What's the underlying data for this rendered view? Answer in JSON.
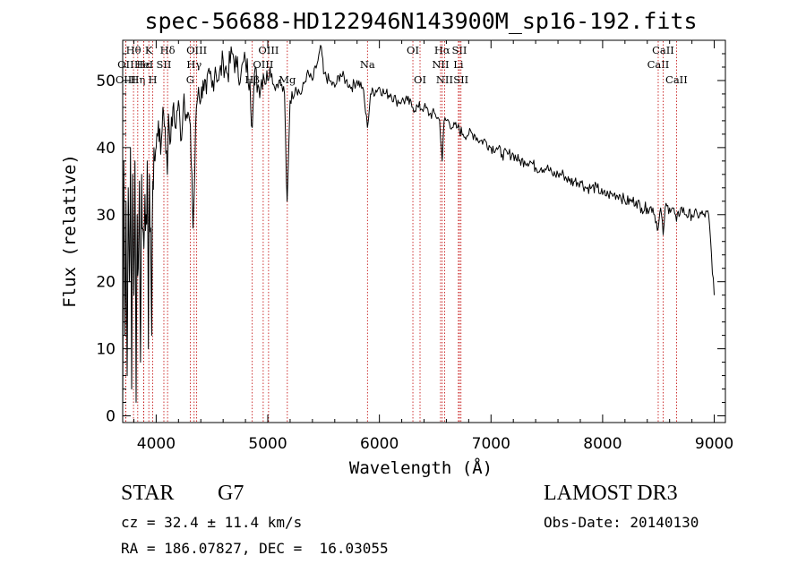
{
  "chart_data": {
    "type": "line",
    "title": "spec-56688-HD122946N143900M_sp16-192.fits",
    "xlabel": "Wavelength (Å)",
    "ylabel": "Flux (relative)",
    "xlim": [
      3700,
      9100
    ],
    "ylim": [
      -1,
      56
    ],
    "xticks": [
      4000,
      5000,
      6000,
      7000,
      8000,
      9000
    ],
    "yticks": [
      0,
      10,
      20,
      30,
      40,
      50
    ],
    "series": [
      {
        "name": "flux",
        "points": [
          [
            3700,
            1
          ],
          [
            3710,
            38
          ],
          [
            3720,
            12
          ],
          [
            3730,
            32
          ],
          [
            3740,
            6
          ],
          [
            3750,
            34
          ],
          [
            3760,
            20
          ],
          [
            3770,
            40
          ],
          [
            3780,
            4
          ],
          [
            3790,
            36
          ],
          [
            3800,
            18
          ],
          [
            3810,
            38
          ],
          [
            3820,
            2
          ],
          [
            3830,
            30
          ],
          [
            3840,
            22
          ],
          [
            3850,
            35
          ],
          [
            3860,
            8
          ],
          [
            3870,
            36
          ],
          [
            3880,
            28
          ],
          [
            3890,
            25
          ],
          [
            3900,
            33
          ],
          [
            3910,
            30
          ],
          [
            3920,
            38
          ],
          [
            3930,
            10
          ],
          [
            3940,
            36
          ],
          [
            3950,
            28
          ],
          [
            3960,
            12
          ],
          [
            3970,
            35
          ],
          [
            3980,
            40
          ],
          [
            3990,
            38
          ],
          [
            4000,
            40
          ],
          [
            4020,
            44
          ],
          [
            4040,
            39
          ],
          [
            4060,
            46
          ],
          [
            4080,
            43
          ],
          [
            4100,
            36
          ],
          [
            4110,
            45
          ],
          [
            4130,
            41
          ],
          [
            4150,
            46
          ],
          [
            4170,
            43
          ],
          [
            4200,
            47
          ],
          [
            4220,
            41
          ],
          [
            4250,
            48
          ],
          [
            4270,
            45
          ],
          [
            4300,
            44
          ],
          [
            4320,
            36
          ],
          [
            4330,
            28
          ],
          [
            4340,
            33
          ],
          [
            4360,
            46
          ],
          [
            4380,
            49
          ],
          [
            4400,
            47
          ],
          [
            4420,
            50
          ],
          [
            4450,
            48
          ],
          [
            4480,
            51
          ],
          [
            4500,
            49
          ],
          [
            4530,
            52
          ],
          [
            4560,
            50
          ],
          [
            4600,
            53
          ],
          [
            4640,
            51
          ],
          [
            4680,
            54
          ],
          [
            4720,
            52
          ],
          [
            4760,
            51
          ],
          [
            4800,
            53
          ],
          [
            4840,
            50
          ],
          [
            4861,
            43
          ],
          [
            4880,
            51
          ],
          [
            4920,
            49
          ],
          [
            4960,
            51
          ],
          [
            5000,
            50
          ],
          [
            5020,
            52
          ],
          [
            5060,
            49
          ],
          [
            5100,
            50
          ],
          [
            5150,
            48
          ],
          [
            5167,
            35
          ],
          [
            5173,
            32
          ],
          [
            5184,
            38
          ],
          [
            5200,
            47
          ],
          [
            5250,
            49
          ],
          [
            5300,
            48
          ],
          [
            5350,
            51
          ],
          [
            5400,
            50
          ],
          [
            5450,
            53
          ],
          [
            5480,
            55
          ],
          [
            5500,
            51
          ],
          [
            5550,
            50
          ],
          [
            5600,
            49
          ],
          [
            5650,
            51
          ],
          [
            5700,
            50
          ],
          [
            5750,
            49
          ],
          [
            5800,
            50
          ],
          [
            5850,
            49
          ],
          [
            5893,
            43
          ],
          [
            5920,
            48
          ],
          [
            6000,
            49
          ],
          [
            6050,
            48
          ],
          [
            6100,
            48
          ],
          [
            6150,
            47
          ],
          [
            6200,
            47
          ],
          [
            6250,
            47
          ],
          [
            6300,
            46
          ],
          [
            6350,
            46
          ],
          [
            6400,
            46
          ],
          [
            6450,
            45
          ],
          [
            6500,
            45
          ],
          [
            6540,
            44
          ],
          [
            6563,
            38
          ],
          [
            6580,
            44
          ],
          [
            6620,
            44
          ],
          [
            6660,
            43
          ],
          [
            6700,
            43
          ],
          [
            6750,
            42
          ],
          [
            6800,
            42
          ],
          [
            6850,
            42
          ],
          [
            6900,
            41
          ],
          [
            6950,
            41
          ],
          [
            7000,
            40
          ],
          [
            7050,
            40
          ],
          [
            7100,
            39
          ],
          [
            7150,
            39
          ],
          [
            7200,
            39
          ],
          [
            7250,
            38
          ],
          [
            7300,
            38
          ],
          [
            7350,
            38
          ],
          [
            7400,
            37
          ],
          [
            7450,
            37
          ],
          [
            7500,
            37
          ],
          [
            7550,
            36
          ],
          [
            7600,
            36
          ],
          [
            7650,
            36
          ],
          [
            7700,
            35
          ],
          [
            7750,
            35
          ],
          [
            7800,
            35
          ],
          [
            7850,
            34
          ],
          [
            7900,
            34
          ],
          [
            7950,
            34
          ],
          [
            8000,
            33
          ],
          [
            8050,
            33
          ],
          [
            8100,
            33
          ],
          [
            8150,
            33
          ],
          [
            8200,
            32
          ],
          [
            8250,
            32
          ],
          [
            8300,
            32
          ],
          [
            8350,
            31
          ],
          [
            8400,
            31
          ],
          [
            8450,
            31
          ],
          [
            8498,
            28
          ],
          [
            8520,
            31
          ],
          [
            8542,
            27
          ],
          [
            8560,
            31
          ],
          [
            8600,
            31
          ],
          [
            8630,
            31
          ],
          [
            8662,
            29
          ],
          [
            8700,
            31
          ],
          [
            8750,
            30
          ],
          [
            8800,
            30
          ],
          [
            8850,
            30
          ],
          [
            8900,
            30
          ],
          [
            8950,
            30
          ],
          [
            9000,
            18
          ]
        ]
      }
    ],
    "lines": [
      {
        "name": "Hθ",
        "wave": 3797,
        "row": 0
      },
      {
        "name": "OII",
        "wave": 3727,
        "row": 1
      },
      {
        "name": "OIII",
        "wave": 3727,
        "row": 2
      },
      {
        "name": "Hε",
        "wave": 3889,
        "row": 1
      },
      {
        "name": "Hη",
        "wave": 3835,
        "row": 2
      },
      {
        "name": "K",
        "wave": 3934,
        "row": 0
      },
      {
        "name": "H",
        "wave": 3969,
        "row": 2
      },
      {
        "name": "HeI",
        "wave": 3889,
        "row": 1
      },
      {
        "name": "SII",
        "wave": 4069,
        "row": 1
      },
      {
        "name": "Hδ",
        "wave": 4102,
        "row": 0
      },
      {
        "name": "G",
        "wave": 4305,
        "row": 2
      },
      {
        "name": "Hγ",
        "wave": 4340,
        "row": 1
      },
      {
        "name": "OIII",
        "wave": 4363,
        "row": 0
      },
      {
        "name": "Hβ",
        "wave": 4861,
        "row": 2
      },
      {
        "name": "OIII",
        "wave": 4959,
        "row": 1
      },
      {
        "name": "OIII",
        "wave": 5007,
        "row": 0
      },
      {
        "name": "Mg",
        "wave": 5175,
        "row": 2
      },
      {
        "name": "Na",
        "wave": 5893,
        "row": 1
      },
      {
        "name": "OI",
        "wave": 6300,
        "row": 0
      },
      {
        "name": "OI",
        "wave": 6364,
        "row": 2
      },
      {
        "name": "Hα",
        "wave": 6563,
        "row": 0
      },
      {
        "name": "NII",
        "wave": 6548,
        "row": 1
      },
      {
        "name": "NII",
        "wave": 6584,
        "row": 2
      },
      {
        "name": "SII",
        "wave": 6717,
        "row": 0
      },
      {
        "name": "Li",
        "wave": 6708,
        "row": 1
      },
      {
        "name": "SII",
        "wave": 6731,
        "row": 2
      },
      {
        "name": "CaII",
        "wave": 8498,
        "row": 1
      },
      {
        "name": "CaII",
        "wave": 8542,
        "row": 0
      },
      {
        "name": "CaII",
        "wave": 8662,
        "row": 2
      }
    ]
  },
  "info": {
    "object_type": "STAR",
    "subclass": "G7",
    "survey": "LAMOST DR3",
    "redshift": "cz = 32.4 ± 11.4 km/s",
    "obs_date": "Obs-Date: 20140130",
    "coords": "RA = 186.07827, DEC =  16.03055"
  },
  "colors": {
    "line_marker": "#c00000",
    "spectrum": "#000000"
  }
}
